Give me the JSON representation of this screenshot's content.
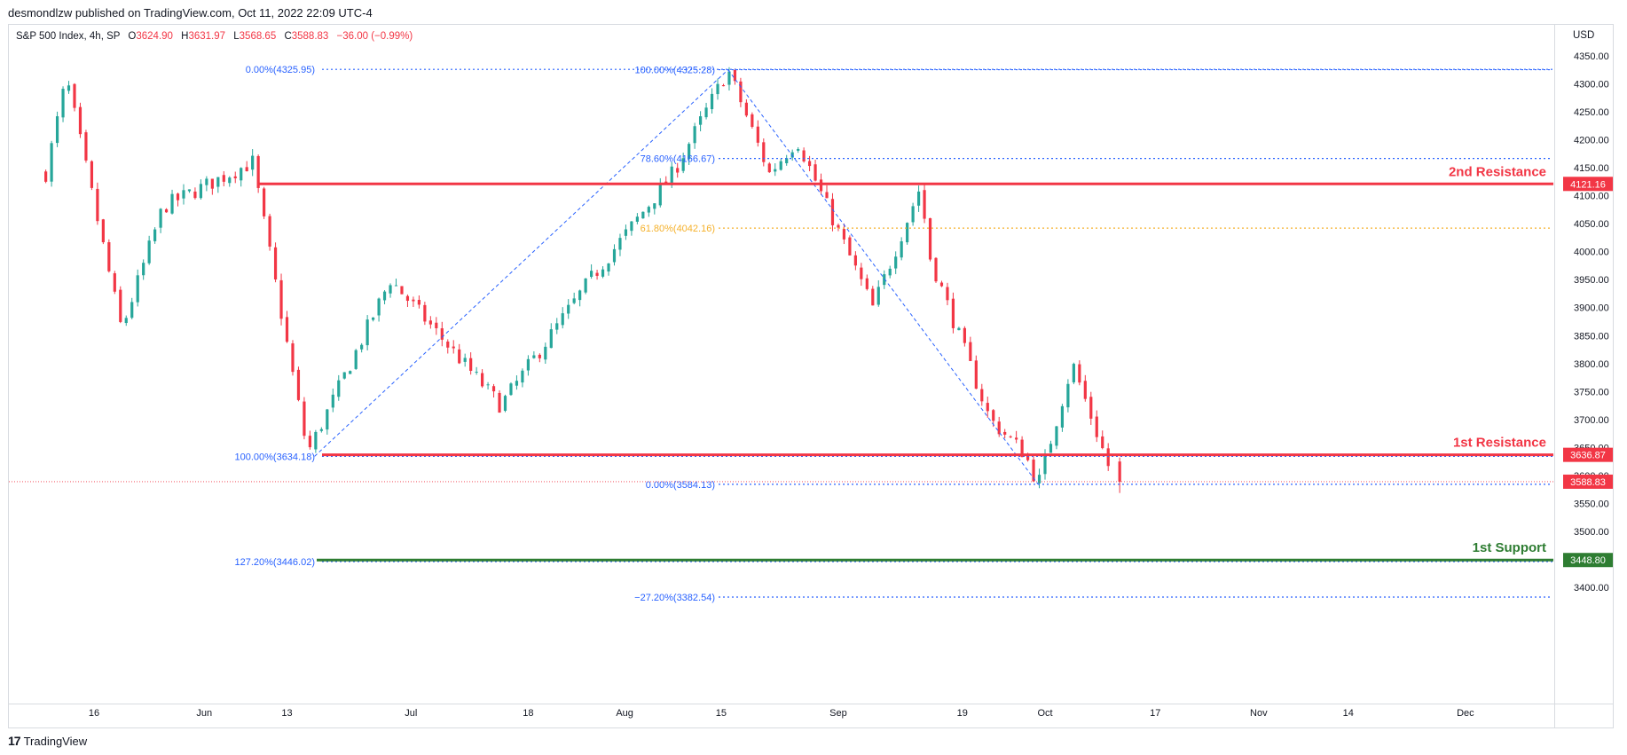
{
  "header": {
    "publisher_text": "desmondlzw published on TradingView.com, Oct 11, 2022 22:09 UTC-4"
  },
  "legend": {
    "symbol": "S&P 500 Index, 4h, SP",
    "open_label": "O",
    "open_value": "3624.90",
    "high_label": "H",
    "high_value": "3631.97",
    "low_label": "L",
    "low_value": "3568.65",
    "close_label": "C",
    "close_value": "3588.83",
    "change": "−36.00 (−0.99%)"
  },
  "axis": {
    "currency": "USD"
  },
  "footer": {
    "brand": "TradingView",
    "logo_glyph": "17"
  },
  "colors": {
    "up": "#26a69a",
    "down": "#f23645",
    "fib_blue": "#2962ff",
    "fib_orange": "#f5b12b",
    "resistance": "#f23645",
    "support": "#2e7d32"
  },
  "chart_data": {
    "type": "candlestick",
    "ylim": [
      3370,
      4370
    ],
    "y_ticks": [
      3400,
      3450,
      3500,
      3550,
      3600,
      3650,
      3700,
      3750,
      3800,
      3850,
      3900,
      3950,
      4000,
      4050,
      4100,
      4150,
      4200,
      4250,
      4300,
      4350
    ],
    "y_tick_labels": [
      "3400.00",
      "3450.00",
      "3500.00",
      "3550.00",
      "3600.00",
      "3650.00",
      "3700.00",
      "3750.00",
      "3800.00",
      "3850.00",
      "3900.00",
      "3950.00",
      "4000.00",
      "4050.00",
      "4100.00",
      "4150.00",
      "4200.00",
      "4250.00",
      "4300.00",
      "4350.00"
    ],
    "x_tick_labels": [
      "16",
      "Jun",
      "13",
      "Jul",
      "18",
      "Aug",
      "15",
      "Sep",
      "19",
      "Oct",
      "17",
      "Nov",
      "14",
      "Dec"
    ],
    "x_ticks_dates": [
      "2022-05-16",
      "2022-06-01",
      "2022-06-13",
      "2022-07-01",
      "2022-07-18",
      "2022-08-01",
      "2022-08-15",
      "2022-09-01",
      "2022-09-19",
      "2022-10-01",
      "2022-10-17",
      "2022-11-01",
      "2022-11-14",
      "2022-12-01"
    ],
    "anchors": [
      {
        "date": "2022-05-09",
        "price": 4140
      },
      {
        "date": "2022-05-12",
        "price": 4310
      },
      {
        "date": "2022-05-20",
        "price": 3860
      },
      {
        "date": "2022-05-26",
        "price": 4080
      },
      {
        "date": "2022-06-08",
        "price": 4160
      },
      {
        "date": "2022-06-16",
        "price": 3640
      },
      {
        "date": "2022-06-28",
        "price": 3950
      },
      {
        "date": "2022-07-14",
        "price": 3725
      },
      {
        "date": "2022-07-27",
        "price": 3950
      },
      {
        "date": "2022-08-08",
        "price": 4140
      },
      {
        "date": "2022-08-16",
        "price": 4325
      },
      {
        "date": "2022-08-22",
        "price": 4140
      },
      {
        "date": "2022-08-26",
        "price": 4200
      },
      {
        "date": "2022-09-06",
        "price": 3900
      },
      {
        "date": "2022-09-13",
        "price": 4120
      },
      {
        "date": "2022-09-14",
        "price": 4000
      },
      {
        "date": "2022-09-23",
        "price": 3700
      },
      {
        "date": "2022-09-28",
        "price": 3640
      },
      {
        "date": "2022-09-30",
        "price": 3584
      },
      {
        "date": "2022-10-05",
        "price": 3800
      },
      {
        "date": "2022-10-11",
        "price": 3588
      }
    ],
    "last_candle": {
      "open": 3624.9,
      "high": 3631.97,
      "low": 3568.65,
      "close": 3588.83
    },
    "fib_levels": [
      {
        "label": "0.00%(4325.95)",
        "price": 4325.95,
        "color": "#2962ff"
      },
      {
        "label": "100.00%(4325.28)",
        "price": 4325.28,
        "color": "#2962ff"
      },
      {
        "label": "78.60%(4166.67)",
        "price": 4166.67,
        "color": "#2962ff"
      },
      {
        "label": "61.80%(4042.16)",
        "price": 4042.16,
        "color": "#f5b12b"
      },
      {
        "label": "100.00%(3634.18)",
        "price": 3634.18,
        "color": "#2962ff"
      },
      {
        "label": "0.00%(3584.13)",
        "price": 3584.13,
        "color": "#2962ff"
      },
      {
        "label": "127.20%(3446.02)",
        "price": 3446.02,
        "color": "#2962ff"
      },
      {
        "label": "−27.20%(3382.54)",
        "price": 3382.54,
        "color": "#2962ff"
      }
    ],
    "trend_lines": [
      {
        "from": {
          "date": "2022-06-17",
          "price": 3634.18
        },
        "to": {
          "date": "2022-08-16",
          "price": 4325.28
        }
      },
      {
        "from": {
          "date": "2022-08-16",
          "price": 4325.28
        },
        "to": {
          "date": "2022-09-30",
          "price": 3584.13
        }
      }
    ],
    "horizontal_levels": [
      {
        "name": "2nd Resistance",
        "price": 4121.16,
        "label": "4121.16",
        "color": "#f23645"
      },
      {
        "name": "1st Resistance",
        "price": 3636.87,
        "label": "3636.87",
        "color": "#f23645"
      },
      {
        "name": "1st Support",
        "price": 3448.8,
        "label": "3448.80",
        "color": "#2e7d32"
      }
    ],
    "current_price": {
      "price": 3588.83,
      "label": "3588.83"
    }
  }
}
